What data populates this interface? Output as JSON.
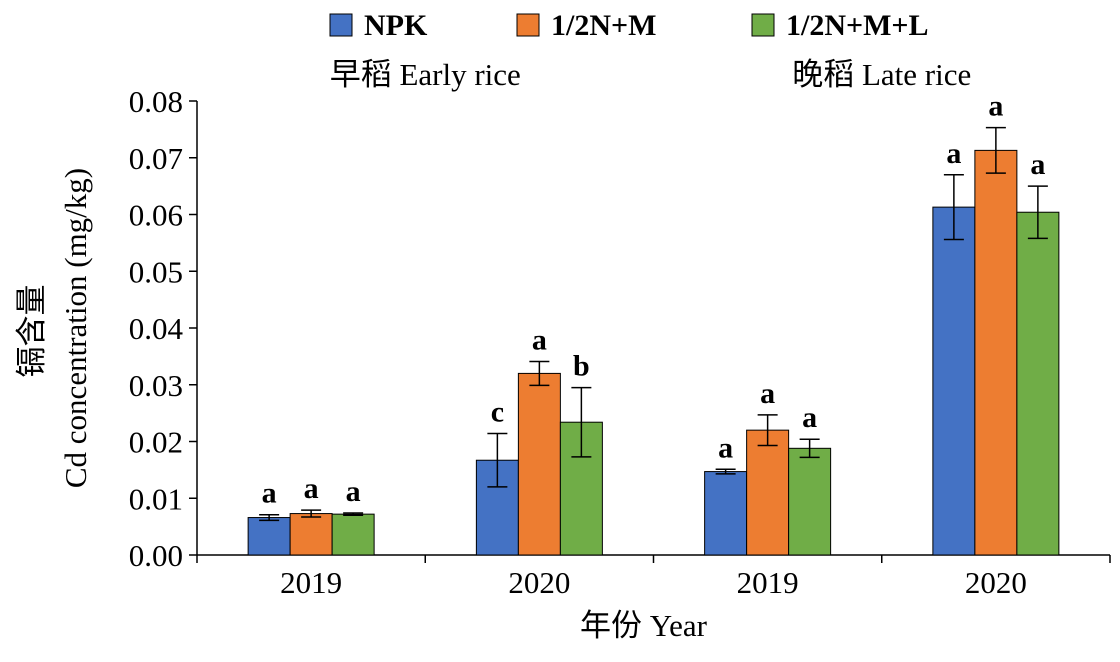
{
  "chart_data": {
    "type": "bar",
    "ylabel_line1": "镉含量",
    "ylabel_line2": "Cd concentration (mg/kg)",
    "xlabel": "年份 Year",
    "ylim": [
      0,
      0.08
    ],
    "yticks": [
      "0.00",
      "0.01",
      "0.02",
      "0.03",
      "0.04",
      "0.05",
      "0.06",
      "0.07",
      "0.08"
    ],
    "grid": false,
    "legend_position": "top",
    "groups": [
      {
        "label": "早稻 Early rice",
        "categories": [
          "2019",
          "2020"
        ]
      },
      {
        "label": "晚稻 Late rice",
        "categories": [
          "2019",
          "2020"
        ]
      }
    ],
    "categories": [
      "2019",
      "2020",
      "2019",
      "2020"
    ],
    "series": [
      {
        "name": "NPK",
        "color": "#4472C4",
        "values": [
          0.0066,
          0.0167,
          0.0147,
          0.0613
        ],
        "errors": [
          0.0005,
          0.0047,
          0.0004,
          0.0057
        ],
        "labels": [
          "a",
          "c",
          "a",
          "a"
        ]
      },
      {
        "name": "1/2N+M",
        "color": "#ED7D31",
        "values": [
          0.0073,
          0.032,
          0.022,
          0.0713
        ],
        "errors": [
          0.0006,
          0.0021,
          0.0027,
          0.004
        ],
        "labels": [
          "a",
          "a",
          "a",
          "a"
        ]
      },
      {
        "name": "1/2N+M+L",
        "color": "#70AD47",
        "values": [
          0.0072,
          0.0234,
          0.0188,
          0.0604
        ],
        "errors": [
          0.0002,
          0.0061,
          0.0016,
          0.0046
        ],
        "labels": [
          "a",
          "b",
          "a",
          "a"
        ]
      }
    ]
  }
}
